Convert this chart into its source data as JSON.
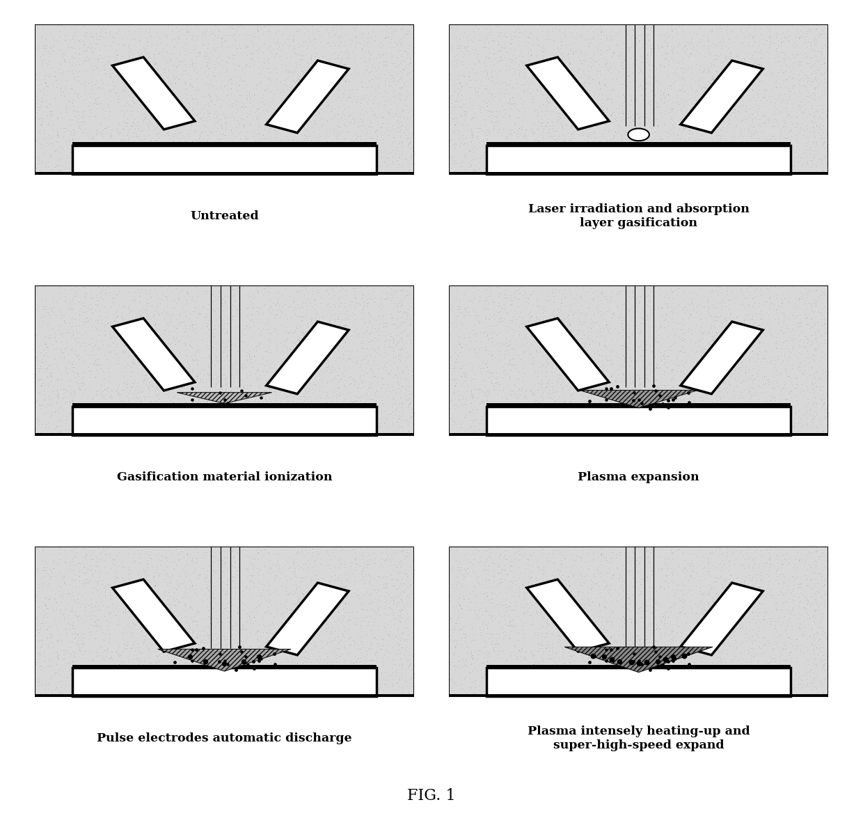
{
  "title": "FIG. 1",
  "panels": [
    {
      "label": "Untreated",
      "row": 0,
      "col": 0,
      "has_laser": false,
      "plasma_level": 0,
      "has_circle": false
    },
    {
      "label": "Laser irradiation and absorption\nlayer gasification",
      "row": 0,
      "col": 1,
      "has_laser": true,
      "plasma_level": 0,
      "has_circle": true
    },
    {
      "label": "Gasification material ionization",
      "row": 1,
      "col": 0,
      "has_laser": true,
      "plasma_level": 1,
      "has_circle": false
    },
    {
      "label": "Plasma expansion",
      "row": 1,
      "col": 1,
      "has_laser": true,
      "plasma_level": 2,
      "has_circle": false
    },
    {
      "label": "Pulse electrodes automatic discharge",
      "row": 2,
      "col": 0,
      "has_laser": true,
      "plasma_level": 3,
      "has_circle": false
    },
    {
      "label": "Plasma intensely heating-up and\nsuper-high-speed expand",
      "row": 2,
      "col": 1,
      "has_laser": true,
      "plasma_level": 4,
      "has_circle": false
    }
  ],
  "bg_color": "#ffffff"
}
